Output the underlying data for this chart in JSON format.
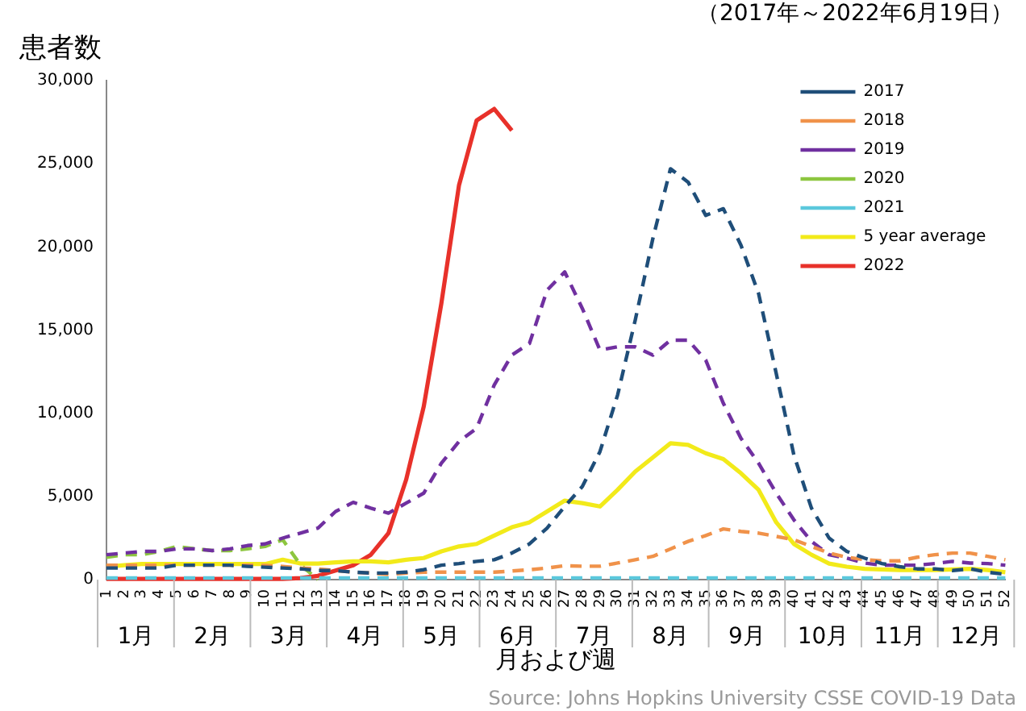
{
  "chart_data": {
    "type": "line",
    "title": "患者数",
    "subtitle": "（2017年～2022年6月19日）",
    "xlabel": "月および週",
    "categories": [
      "1",
      "2",
      "3",
      "4",
      "5",
      "6",
      "7",
      "8",
      "9",
      "10",
      "11",
      "12",
      "13",
      "14",
      "15",
      "16",
      "17",
      "18",
      "19",
      "20",
      "21",
      "22",
      "23",
      "24",
      "25",
      "26",
      "27",
      "28",
      "29",
      "30",
      "31",
      "32",
      "33",
      "34",
      "35",
      "36",
      "37",
      "38",
      "39",
      "40",
      "41",
      "42",
      "43",
      "44",
      "45",
      "46",
      "47",
      "48",
      "49",
      "50",
      "51",
      "52"
    ],
    "series": [
      {
        "name": "2017",
        "color": "#1f4e79",
        "line_style": "dashed",
        "values": [
          700,
          700,
          700,
          700,
          870,
          870,
          870,
          870,
          800,
          750,
          700,
          650,
          550,
          550,
          450,
          400,
          400,
          450,
          600,
          870,
          970,
          1100,
          1200,
          1600,
          2150,
          3100,
          4400,
          5600,
          7700,
          11100,
          15600,
          20500,
          24700,
          23900,
          21900,
          22300,
          20100,
          17200,
          12400,
          7500,
          4300,
          2500,
          1700,
          1300,
          970,
          780,
          650,
          650,
          550,
          650,
          450,
          320
        ]
      },
      {
        "name": "2018",
        "color": "#f0924a",
        "line_style": "dashed",
        "values": [
          870,
          870,
          870,
          870,
          870,
          870,
          870,
          870,
          870,
          850,
          800,
          700,
          650,
          550,
          450,
          400,
          320,
          400,
          450,
          450,
          450,
          450,
          450,
          520,
          600,
          700,
          840,
          810,
          810,
          1000,
          1200,
          1400,
          1850,
          2300,
          2650,
          3050,
          2900,
          2800,
          2600,
          2400,
          2000,
          1600,
          1350,
          1200,
          1130,
          1130,
          1350,
          1500,
          1600,
          1600,
          1400,
          1200
        ]
      },
      {
        "name": "2019",
        "color": "#7030a0",
        "line_style": "dashed",
        "values": [
          1500,
          1600,
          1700,
          1700,
          1850,
          1850,
          1750,
          1850,
          2050,
          2150,
          2500,
          2800,
          3100,
          4100,
          4650,
          4300,
          4000,
          4600,
          5200,
          7000,
          8300,
          9100,
          11700,
          13500,
          14200,
          17400,
          18500,
          16300,
          13800,
          14000,
          14000,
          13500,
          14400,
          14400,
          13200,
          10600,
          8500,
          7000,
          5200,
          3600,
          2300,
          1500,
          1300,
          1000,
          870,
          870,
          870,
          970,
          1100,
          1000,
          970,
          870
        ]
      },
      {
        "name": "2020",
        "color": "#8dc63f",
        "line_style": "dashed",
        "values": [
          1350,
          1500,
          1500,
          1700,
          2000,
          1850,
          1750,
          1750,
          1850,
          2000,
          2400,
          900,
          0,
          null,
          null,
          null,
          null,
          null,
          null,
          null,
          null,
          null,
          null,
          null,
          null,
          null,
          null,
          null,
          null,
          null,
          null,
          null,
          null,
          null,
          null,
          null,
          null,
          null,
          null,
          null,
          null,
          null,
          null,
          null,
          null,
          null,
          null,
          null,
          null,
          null,
          null,
          null
        ]
      },
      {
        "name": "2021",
        "color": "#5bc8dc",
        "line_style": "dashed",
        "values": [
          100,
          100,
          100,
          100,
          100,
          100,
          100,
          100,
          100,
          100,
          100,
          100,
          100,
          100,
          100,
          100,
          100,
          100,
          100,
          100,
          100,
          100,
          100,
          100,
          100,
          100,
          100,
          100,
          100,
          100,
          100,
          100,
          100,
          100,
          100,
          100,
          100,
          100,
          100,
          100,
          100,
          100,
          100,
          100,
          100,
          100,
          100,
          100,
          100,
          100,
          100,
          100
        ]
      },
      {
        "name": "5 year average",
        "color": "#f2ea1a",
        "line_style": "solid",
        "values": [
          780,
          870,
          940,
          940,
          940,
          940,
          940,
          940,
          940,
          940,
          1200,
          970,
          970,
          1040,
          1100,
          1100,
          1040,
          1200,
          1300,
          1700,
          2000,
          2150,
          2650,
          3150,
          3450,
          4100,
          4750,
          4600,
          4400,
          5400,
          6500,
          7350,
          8200,
          8100,
          7600,
          7250,
          6400,
          5400,
          3450,
          2150,
          1500,
          970,
          780,
          650,
          620,
          580,
          580,
          580,
          620,
          650,
          580,
          450
        ]
      },
      {
        "name": "2022",
        "color": "#e8312a",
        "line_style": "solid",
        "values": [
          50,
          50,
          50,
          50,
          50,
          50,
          50,
          50,
          50,
          50,
          50,
          100,
          230,
          550,
          870,
          1500,
          2800,
          6000,
          10400,
          16600,
          23700,
          27600,
          28300,
          27000,
          null,
          null,
          null,
          null,
          null,
          null,
          null,
          null,
          null,
          null,
          null,
          null,
          null,
          null,
          null,
          null,
          null,
          null,
          null,
          null,
          null,
          null,
          null,
          null,
          null,
          null,
          null,
          null
        ]
      }
    ],
    "ylim": [
      0,
      30000
    ],
    "yticks": [
      0,
      {
        "value": 5000,
        "label": "5,000"
      },
      {
        "value": 10000,
        "label": "10,000"
      },
      {
        "value": 15000,
        "label": "15,000"
      },
      {
        "value": 20000,
        "label": "20,000"
      },
      {
        "value": 25000,
        "label": "25,000"
      },
      {
        "value": 30000,
        "label": "30,000"
      }
    ],
    "legend": "top right",
    "marker": "none",
    "annotations": [
      "1月",
      "2月",
      "3月",
      "4月",
      "5月",
      "6月",
      "7月",
      "8月",
      "9月",
      "10月",
      "11月",
      "12月",
      "Source: Johns Hopkins University CSSE COVID-19 Data"
    ]
  }
}
